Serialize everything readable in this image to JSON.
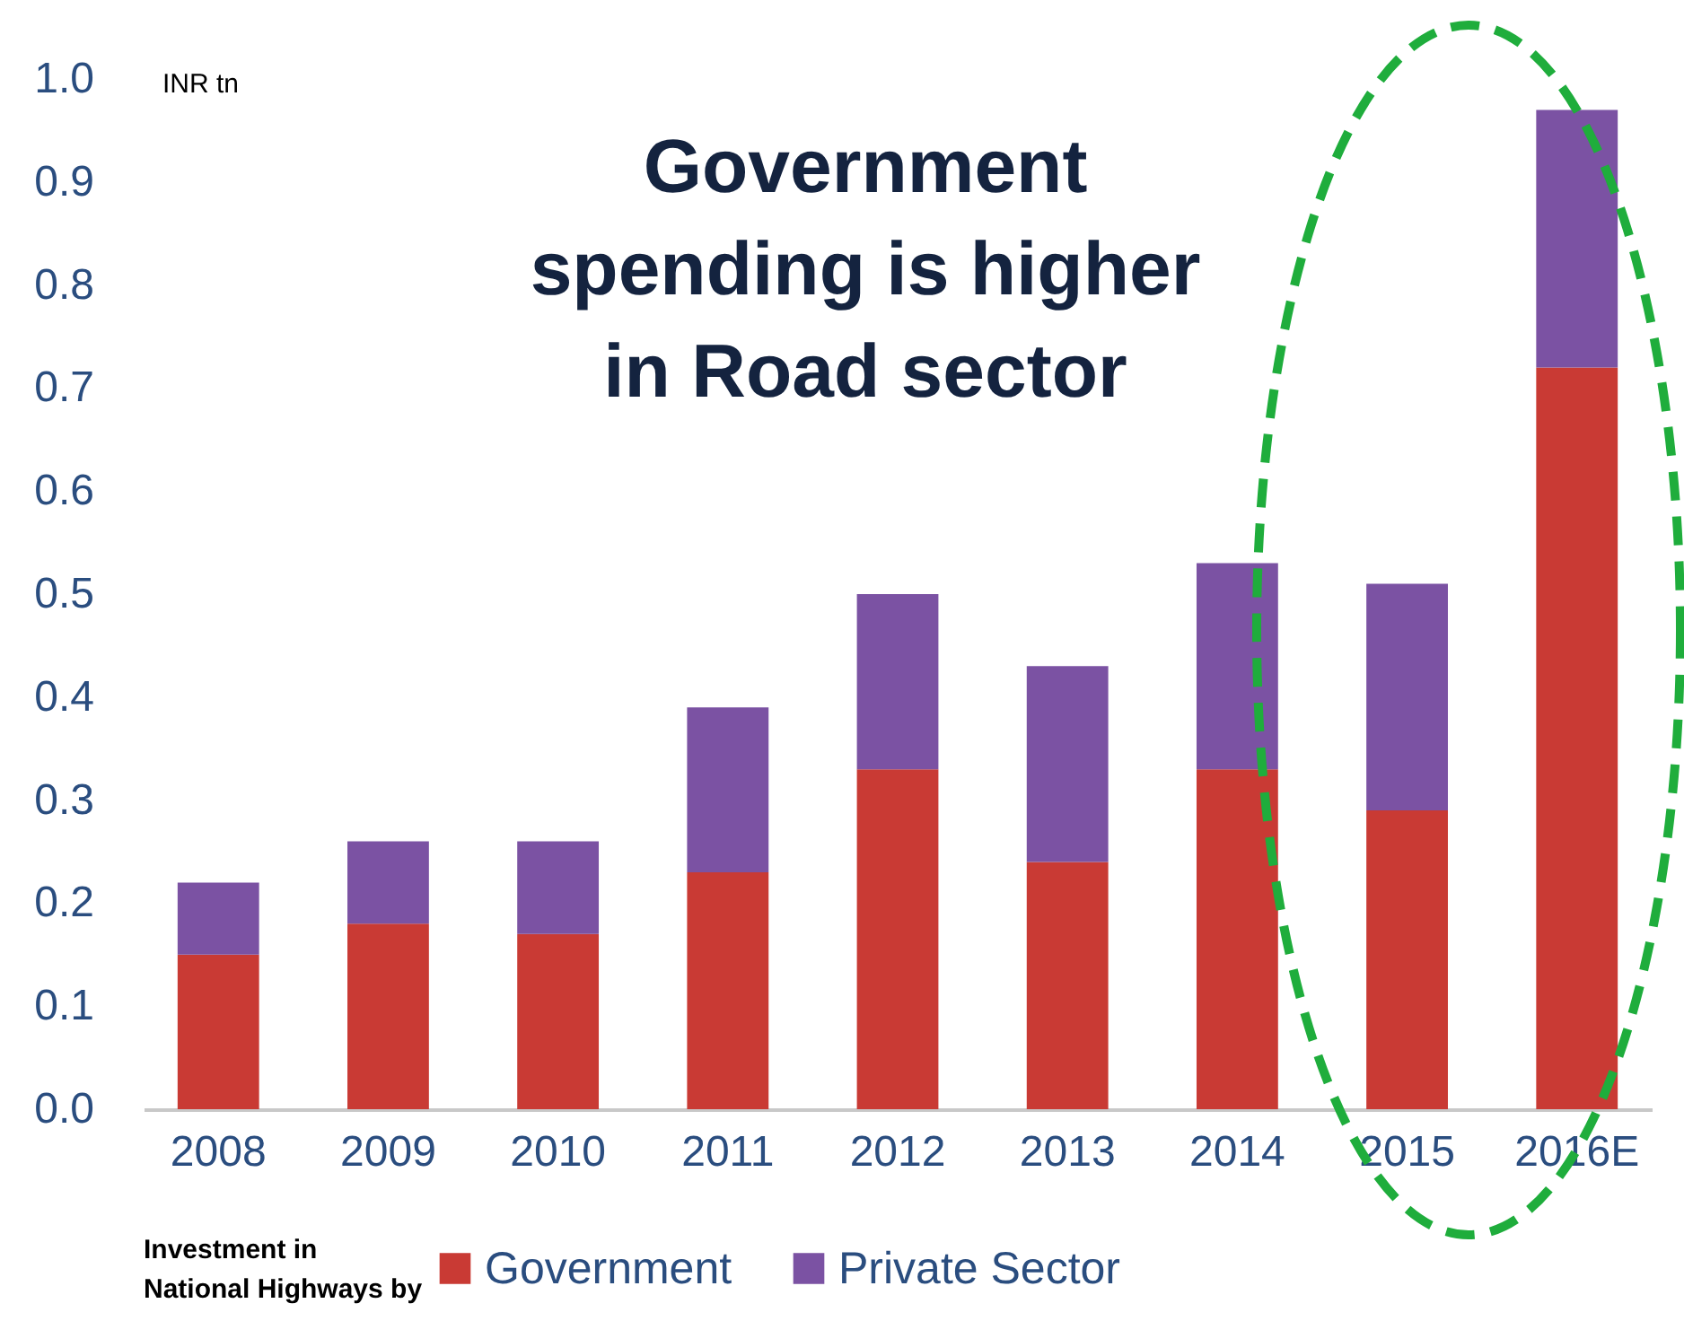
{
  "chart_data": {
    "type": "bar",
    "stacked": true,
    "categories": [
      "2008",
      "2009",
      "2010",
      "2011",
      "2012",
      "2013",
      "2014",
      "2015",
      "2016E"
    ],
    "series": [
      {
        "name": "Government",
        "color": "#c93a34",
        "values": [
          0.15,
          0.18,
          0.17,
          0.23,
          0.33,
          0.24,
          0.33,
          0.29,
          0.72
        ]
      },
      {
        "name": "Private Sector",
        "color": "#7b52a3",
        "values": [
          0.07,
          0.08,
          0.09,
          0.16,
          0.17,
          0.19,
          0.2,
          0.22,
          0.25
        ]
      }
    ],
    "ylabel": "INR tn",
    "ylim": [
      0,
      1.0
    ],
    "yticks": [
      {
        "value": 0,
        "label": "0.0"
      },
      0.1,
      0.2,
      0.3,
      0.4,
      0.5,
      0.6,
      0.7,
      0.8,
      0.9,
      {
        "value": 1,
        "label": "1.0"
      }
    ],
    "legend": "bottom",
    "legend_title": "Investment in National Highways by",
    "annotations": [
      "Government spending is higher in Road sector"
    ],
    "grid": false
  }
}
